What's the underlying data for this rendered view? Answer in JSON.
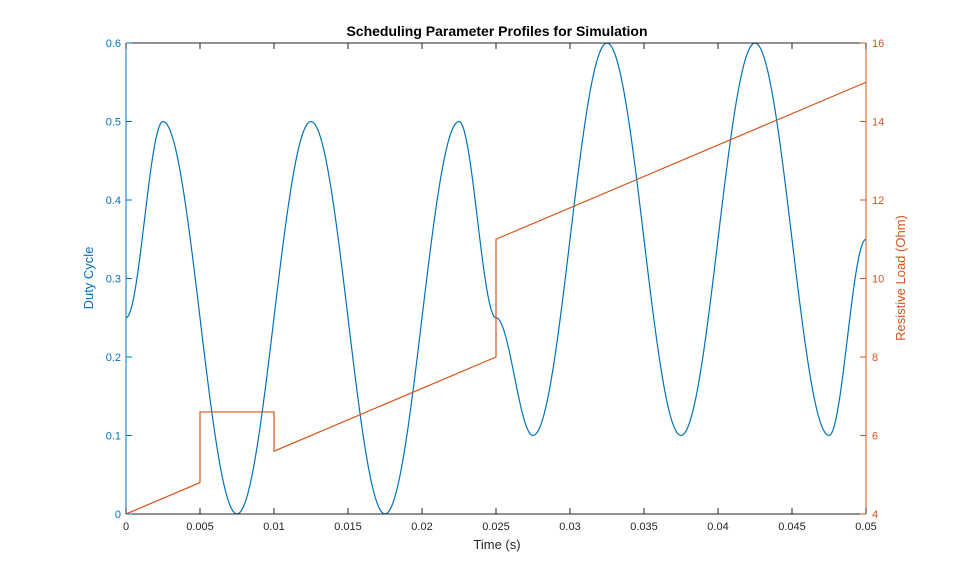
{
  "chart_data": {
    "type": "line",
    "title": "Scheduling Parameter Profiles for Simulation",
    "xlabel": "Time (s)",
    "ylabel_left": "Duty Cycle",
    "ylabel_right": "Resistive Load (Ohm)",
    "xlim": [
      0,
      0.05
    ],
    "ylim_left": [
      0,
      0.6
    ],
    "ylim_right": [
      4,
      16
    ],
    "x_ticks": [
      "0",
      "0.005",
      "0.01",
      "0.015",
      "0.02",
      "0.025",
      "0.03",
      "0.035",
      "0.04",
      "0.045",
      "0.05"
    ],
    "y_left_ticks": [
      "0",
      "0.1",
      "0.2",
      "0.3",
      "0.4",
      "0.5",
      "0.6"
    ],
    "y_right_ticks": [
      "4",
      "6",
      "8",
      "10",
      "12",
      "14",
      "16"
    ],
    "grid": false,
    "colors": {
      "left": "#0072BD",
      "right": "#D95319"
    },
    "series": [
      {
        "name": "Duty Cycle",
        "axis": "left",
        "x": [
          0,
          0.0025,
          0.0075,
          0.0125,
          0.0175,
          0.0225,
          0.025,
          0.0275,
          0.0325,
          0.0375,
          0.0425,
          0.0475,
          0.05
        ],
        "y": [
          0.25,
          0.5,
          0.0,
          0.5,
          0.0,
          0.5,
          0.25,
          0.1,
          0.6,
          0.1,
          0.6,
          0.1,
          0.35
        ]
      },
      {
        "name": "Resistive Load (Ohm)",
        "axis": "right",
        "x": [
          0,
          0.005,
          0.005,
          0.01,
          0.01,
          0.025,
          0.025,
          0.025,
          0.05
        ],
        "y": [
          4,
          4.8,
          6.6,
          6.6,
          5.6,
          8,
          9.3,
          11,
          15
        ]
      }
    ]
  }
}
